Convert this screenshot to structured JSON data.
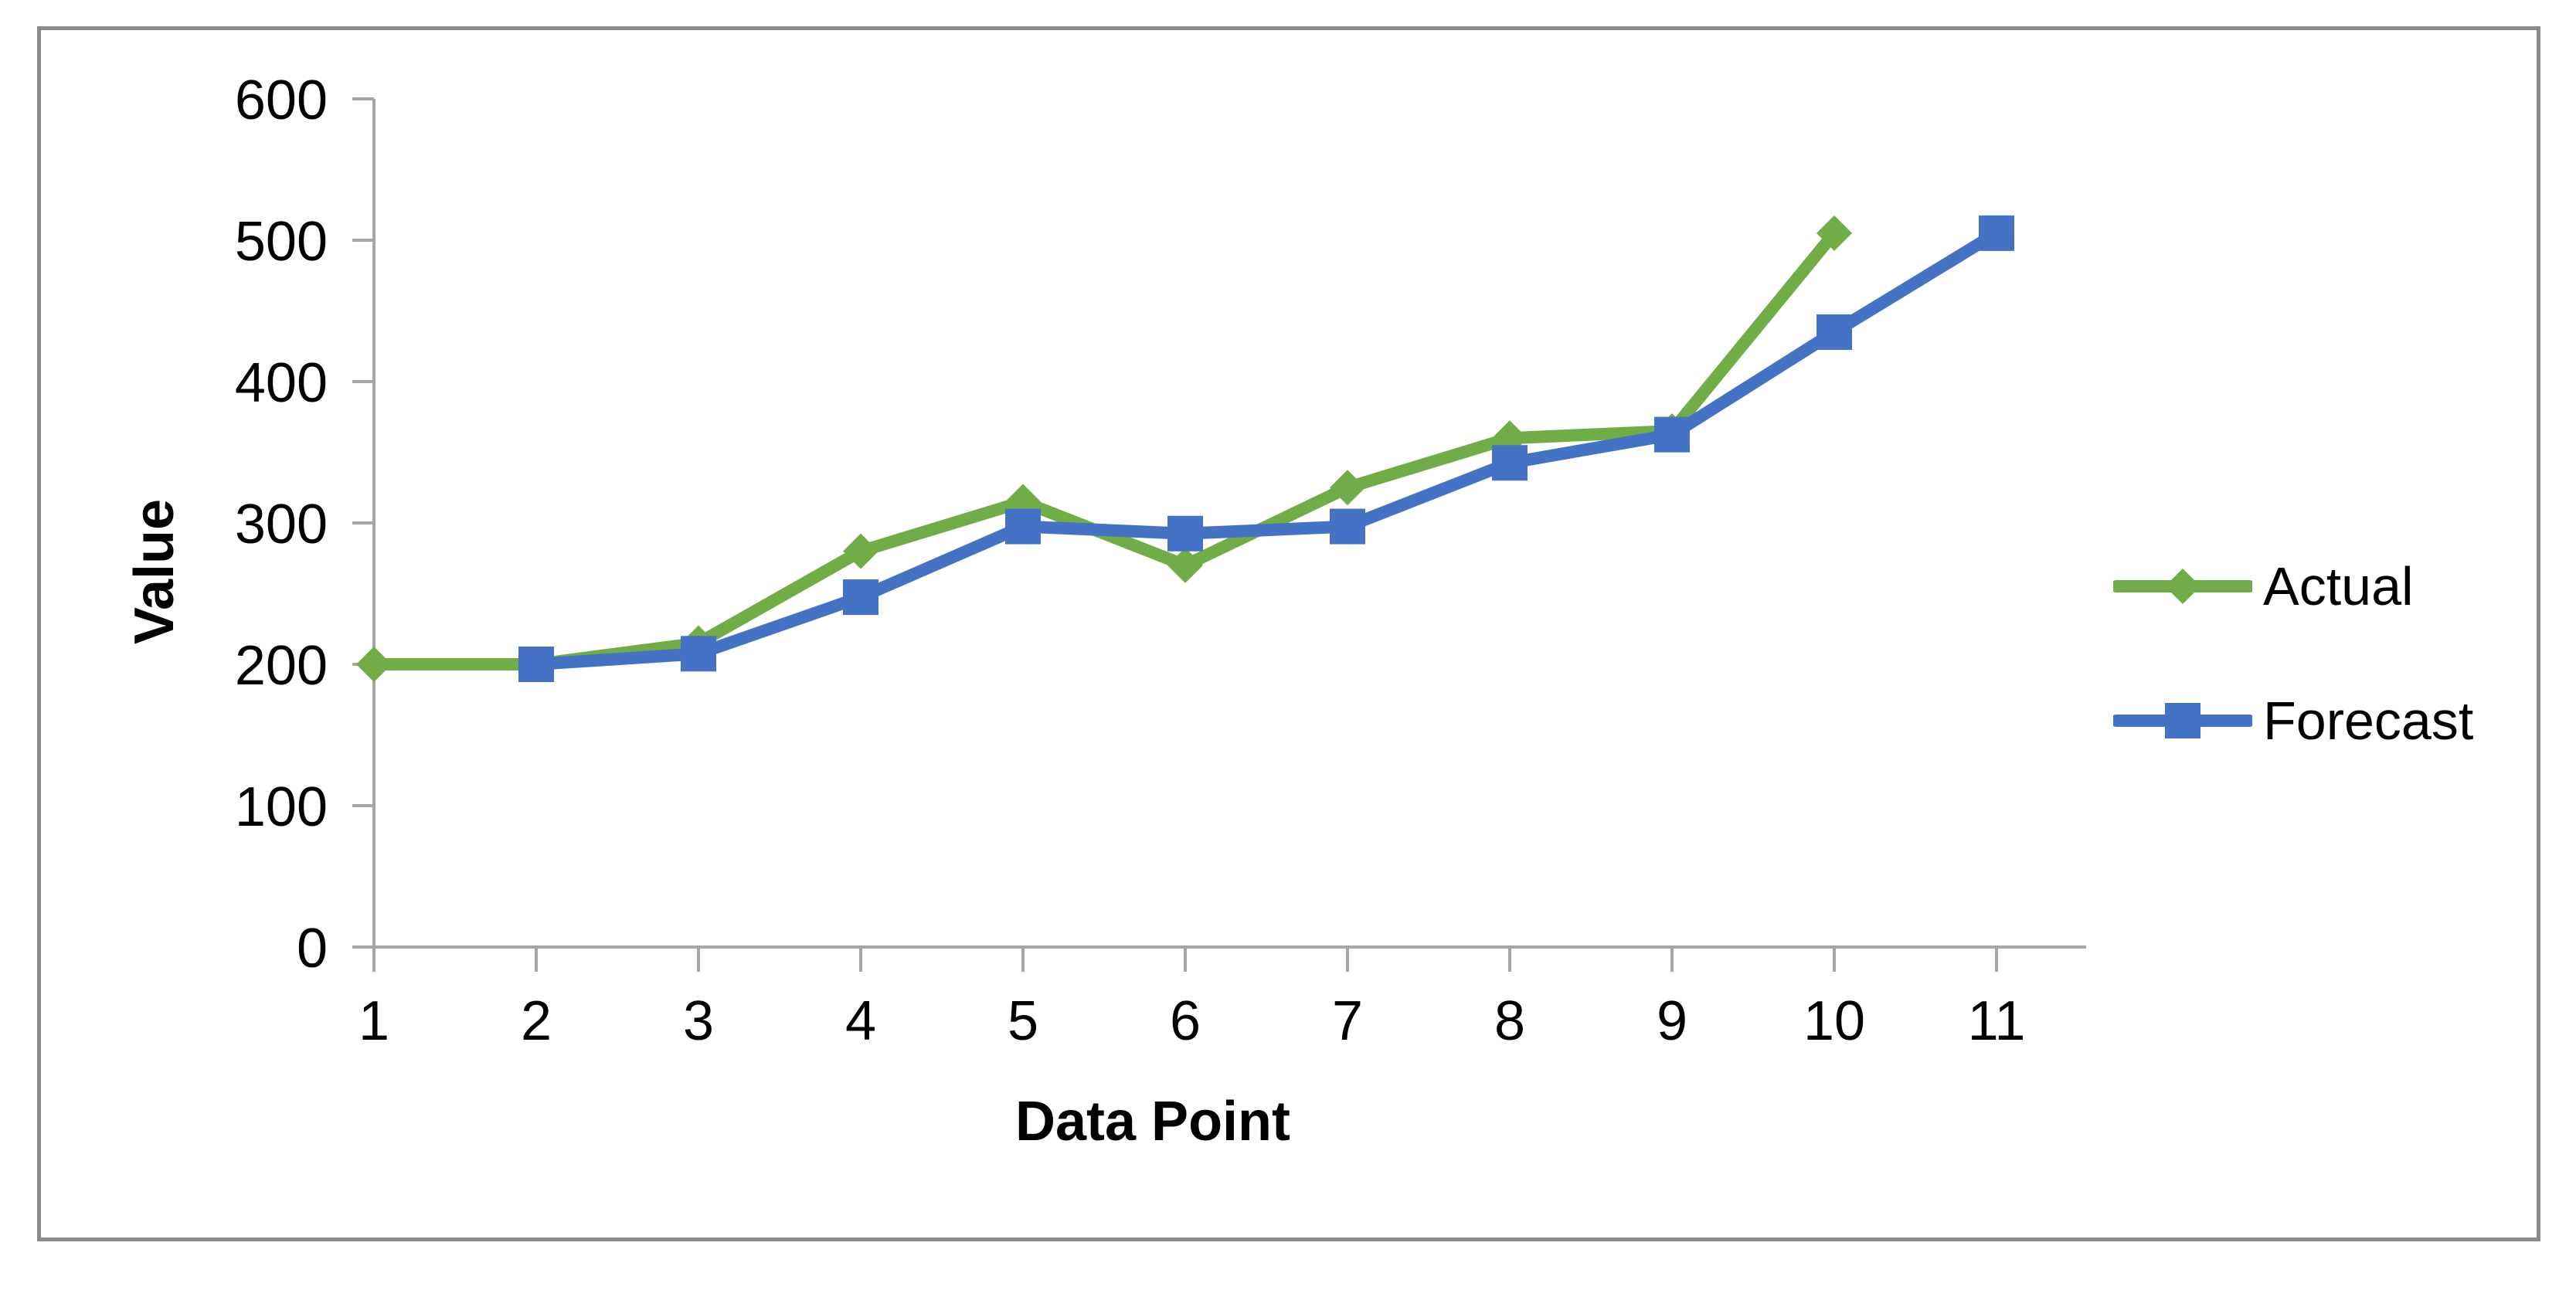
{
  "chart_data": {
    "type": "line",
    "title": "",
    "xlabel": "Data Point",
    "ylabel": "Value",
    "ylim": [
      0,
      600
    ],
    "xlim": [
      1,
      11
    ],
    "y_ticks": [
      600,
      500,
      400,
      300,
      200,
      100,
      0
    ],
    "x_ticks": [
      1,
      2,
      3,
      4,
      5,
      6,
      7,
      8,
      9,
      10,
      11
    ],
    "grid": false,
    "legend_position": "right",
    "series": [
      {
        "name": "Actual",
        "color": "#70AD47",
        "marker": "diamond",
        "x": [
          1,
          2,
          3,
          4,
          5,
          6,
          7,
          8,
          9,
          10
        ],
        "values": [
          200,
          200,
          215,
          280,
          315,
          270,
          325,
          360,
          365,
          505
        ]
      },
      {
        "name": "Forecast",
        "color": "#4472C4",
        "marker": "square",
        "x": [
          2,
          3,
          4,
          5,
          6,
          7,
          8,
          9,
          10,
          11
        ],
        "values": [
          200,
          207.5,
          247.5,
          297.5,
          292.5,
          297.5,
          342.5,
          362.5,
          435,
          505
        ]
      }
    ]
  },
  "axes": {
    "x_title": "Data Point",
    "y_title": "Value"
  },
  "legend": {
    "items": [
      {
        "label": "Actual"
      },
      {
        "label": "Forecast"
      }
    ]
  },
  "colors": {
    "actual": "#70AD47",
    "forecast": "#4472C4",
    "axis": "#A6A6A6",
    "frame_border": "#8A8A8A",
    "text": "#000000",
    "background": "#FFFFFF"
  }
}
